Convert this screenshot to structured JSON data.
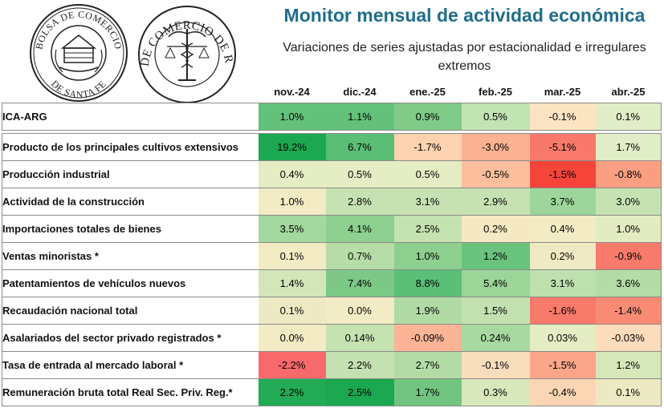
{
  "header": {
    "title": "Monitor mensual de actividad económica",
    "subtitle": "Variaciones de series ajustadas por estacionalidad e irregulares extremos"
  },
  "logos": {
    "santa_fe": {
      "top": "BOLSA DE COMERCIO",
      "bottom": "DE SANTA FE"
    },
    "rosario": {
      "text": "BOLSA DE COMERCIO DE ROSARIO"
    }
  },
  "table": {
    "months": [
      "nov.-24",
      "dic.-24",
      "ene.-25",
      "feb.-25",
      "mar.-25",
      "abr.-25"
    ],
    "rows": [
      {
        "label": "ICA-ARG",
        "values": [
          "1.0%",
          "1.1%",
          "0.9%",
          "0.5%",
          "-0.1%",
          "0.1%"
        ],
        "colors": [
          "#63C17A",
          "#63C17A",
          "#80CB88",
          "#C2E3B2",
          "#FCE4C2",
          "#E1EDC7"
        ]
      },
      {
        "label": "Producto de los principales cultivos extensivos",
        "values": [
          "19.2%",
          "6.7%",
          "-1.7%",
          "-3.0%",
          "-5.1%",
          "1.7%"
        ],
        "colors": [
          "#1BA850",
          "#5ABE74",
          "#FCD2B0",
          "#FAB292",
          "#F8796B",
          "#E1EDC7"
        ]
      },
      {
        "label": "Producción industrial",
        "values": [
          "0.4%",
          "0.5%",
          "0.5%",
          "-0.5%",
          "-1.5%",
          "-0.8%"
        ],
        "colors": [
          "#E4EDC3",
          "#E4EDC3",
          "#E4EDC3",
          "#FBBF9E",
          "#F5443A",
          "#FA9F82"
        ]
      },
      {
        "label": "Actividad de la construcción",
        "values": [
          "1.0%",
          "2.8%",
          "3.1%",
          "2.9%",
          "3.7%",
          "3.0%"
        ],
        "colors": [
          "#F2EBC4",
          "#C7E2B2",
          "#C7E2B2",
          "#C7E2B2",
          "#9DD59A",
          "#C7E2B2"
        ]
      },
      {
        "label": "Importaciones totales de bienes",
        "values": [
          "3.5%",
          "4.1%",
          "2.5%",
          "0.2%",
          "0.4%",
          "1.0%"
        ],
        "colors": [
          "#A3D89E",
          "#8ED08F",
          "#C5E2B1",
          "#F4E9C2",
          "#F2EBC4",
          "#E3ECC1"
        ]
      },
      {
        "label": "Ventas minoristas *",
        "values": [
          "0.1%",
          "0.7%",
          "1.0%",
          "1.2%",
          "0.2%",
          "-0.9%"
        ],
        "colors": [
          "#F2EBC4",
          "#B6DDA8",
          "#8DCF8E",
          "#69C37D",
          "#EFEAC3",
          "#F87A6B"
        ]
      },
      {
        "label": "Patentamientos de vehículos nuevos",
        "values": [
          "1.4%",
          "7.4%",
          "8.8%",
          "5.4%",
          "3.1%",
          "3.6%"
        ],
        "colors": [
          "#D2E6B7",
          "#7CC986",
          "#5CBF77",
          "#9CD598",
          "#BEE0AE",
          "#B4DCA6"
        ]
      },
      {
        "label": "Recaudación nacional total",
        "values": [
          "0.1%",
          "0.0%",
          "1.9%",
          "1.5%",
          "-1.6%",
          "-1.4%"
        ],
        "colors": [
          "#EDEAC3",
          "#F2EBC4",
          "#B1DBA4",
          "#C3E1B0",
          "#F87A6B",
          "#F98B75"
        ]
      },
      {
        "label": "Asalariados del sector privado registrados *",
        "values": [
          "0.0%",
          "0.14%",
          "-0.09%",
          "0.24%",
          "0.03%",
          "-0.03%"
        ],
        "colors": [
          "#F2EBC4",
          "#C5E2B1",
          "#FBB496",
          "#A8D9A0",
          "#E4EDC3",
          "#FCDCBA"
        ]
      },
      {
        "label": "Tasa de entrada al mercado laboral *",
        "values": [
          "-2.2%",
          "2.2%",
          "2.7%",
          "-0.1%",
          "-1.5%",
          "1.2%"
        ],
        "colors": [
          "#F8696B",
          "#C4E1B1",
          "#B3DBA6",
          "#F7DDBC",
          "#FBA68A",
          "#D6E7BA"
        ]
      },
      {
        "label": "Remuneración bruta total Real Sec. Priv. Reg.*",
        "values": [
          "2.2%",
          "2.5%",
          "1.7%",
          "0.3%",
          "-0.4%",
          "0.1%"
        ],
        "colors": [
          "#22AA54",
          "#1BA850",
          "#71C580",
          "#D8E8BB",
          "#FCD6B4",
          "#EDEAC3"
        ]
      }
    ]
  }
}
